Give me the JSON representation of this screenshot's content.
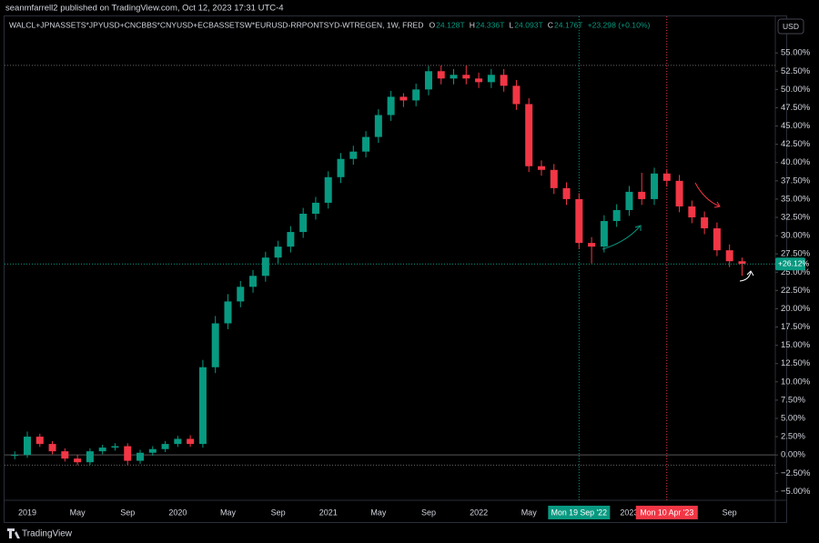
{
  "header": {
    "publisher": "seanmfarrell2 published on TradingView.com, Oct 12, 2023 17:31 UTC-4"
  },
  "currency_button": "USD",
  "footer": {
    "brand": "TradingView"
  },
  "chart_data": {
    "type": "candlestick",
    "title": "WALCL+JPNASSETS*JPYUSD+CNCBBS*CNYUSD+ECBASSETSW*EURUSD-RRPONTSYD-WTREGEN, 1W, FRED",
    "ohlc_legend": [
      {
        "letter": "O",
        "value": "24.128T"
      },
      {
        "letter": "H",
        "value": "24.336T"
      },
      {
        "letter": "L",
        "value": "24.093T"
      },
      {
        "letter": "C",
        "value": "24.176T"
      }
    ],
    "change": "+23.298 (+0.10%)",
    "categories": [
      null,
      "2019",
      null,
      null,
      null,
      "May",
      null,
      null,
      null,
      "Sep",
      null,
      null,
      null,
      "2020",
      null,
      null,
      null,
      "May",
      null,
      null,
      null,
      "Sep",
      null,
      null,
      null,
      "2021",
      null,
      null,
      null,
      "May",
      null,
      null,
      null,
      "Sep",
      null,
      null,
      null,
      "2022",
      null,
      null,
      null,
      "May",
      null,
      null,
      null,
      "Mon 19 Sep '22",
      null,
      null,
      null,
      "2023",
      null,
      null,
      "Mon 10 Apr '23",
      null,
      null,
      null,
      null,
      "Sep",
      null
    ],
    "open": [
      0,
      0,
      2.5,
      1.5,
      0.5,
      -0.5,
      -1,
      0.5,
      1,
      1.2,
      -0.8,
      0.3,
      0.8,
      1.5,
      2.2,
      1.5,
      12,
      18,
      21,
      23,
      24.5,
      27,
      28.5,
      30.5,
      33,
      34.5,
      38,
      40.5,
      41.5,
      43.5,
      46.5,
      49,
      48.5,
      50,
      52.5,
      51.5,
      52,
      51.5,
      51,
      52,
      50.5,
      48,
      39.5,
      39,
      36.5,
      35,
      29,
      28.5,
      32,
      33.5,
      36,
      35,
      38.5,
      37.5,
      34,
      32.5,
      31,
      28,
      26.5
    ],
    "high": [
      0.5,
      3.2,
      2.9,
      1.9,
      0.9,
      0,
      0.9,
      1.4,
      1.6,
      1.6,
      0.7,
      1.2,
      1.9,
      2.6,
      2.7,
      13,
      19,
      22,
      23.8,
      25.3,
      27.8,
      29.3,
      31.3,
      33.8,
      35.3,
      38.8,
      41.3,
      42.3,
      44.3,
      47.3,
      49.8,
      49.5,
      50.8,
      53.2,
      53.3,
      52.8,
      53.3,
      52.3,
      52.8,
      52.8,
      51.3,
      48.8,
      40.3,
      39.8,
      37.3,
      35.8,
      29.8,
      32.8,
      34.3,
      36.8,
      38.6,
      39.3,
      39,
      38.3,
      34.8,
      33.3,
      31.8,
      28.8,
      27
    ],
    "low": [
      -0.6,
      -0.4,
      1.1,
      0.1,
      -0.9,
      -1.4,
      -1.4,
      0.1,
      0.6,
      -1.4,
      -1.2,
      -0.1,
      0.4,
      1.1,
      1.1,
      1,
      11.2,
      17.2,
      20.2,
      22.2,
      23.7,
      26.2,
      27.7,
      29.7,
      32.2,
      33.7,
      37.2,
      39.7,
      40.7,
      42.7,
      45.7,
      47.6,
      47.7,
      49.2,
      50.7,
      50.7,
      50.7,
      50.2,
      50.2,
      49.7,
      47.2,
      38.7,
      38.2,
      35.7,
      34.2,
      28.2,
      26.2,
      27.7,
      31.2,
      32.7,
      34.2,
      34.2,
      36.7,
      33.2,
      31.7,
      30.2,
      27.2,
      25.7,
      24.5
    ],
    "close": [
      0,
      2.5,
      1.5,
      0.5,
      -0.5,
      -1,
      0.5,
      1,
      1.2,
      -0.8,
      0.3,
      0.8,
      1.5,
      2.2,
      1.5,
      12,
      18,
      21,
      23,
      24.5,
      27,
      28.5,
      30.5,
      33,
      34.5,
      38,
      40.5,
      41.5,
      43.5,
      46.5,
      49,
      48.5,
      50,
      52.5,
      51.5,
      52,
      51.5,
      51,
      52,
      50.5,
      48,
      39.5,
      39,
      36.5,
      35,
      29,
      28.5,
      32,
      33.5,
      36,
      35,
      38.5,
      37.5,
      34,
      32.5,
      31,
      28,
      26.5,
      26.12
    ],
    "up_color": "#089981",
    "down_color": "#f23645",
    "markers": [
      {
        "at": 45,
        "color": "#089981"
      },
      {
        "at": 52,
        "color": "#f23645"
      }
    ],
    "last_price": {
      "value": 26.12,
      "label": "+26.12%",
      "color": "#089981"
    },
    "dotted_levels": [
      53.3,
      -1.4
    ],
    "ylim": [
      -6.2,
      60
    ],
    "yticks": [
      {
        "value": -5,
        "label": "−5.00%"
      },
      {
        "value": -2.5,
        "label": "−2.50%"
      },
      {
        "value": 0,
        "label": "0.00%"
      },
      {
        "value": 2.5,
        "label": "2.50%"
      },
      {
        "value": 5,
        "label": "5.00%"
      },
      {
        "value": 7.5,
        "label": "7.50%"
      },
      {
        "value": 10,
        "label": "10.00%"
      },
      {
        "value": 12.5,
        "label": "12.50%"
      },
      {
        "value": 15,
        "label": "15.00%"
      },
      {
        "value": 17.5,
        "label": "17.50%"
      },
      {
        "value": 20,
        "label": "20.00%"
      },
      {
        "value": 22.5,
        "label": "22.50%"
      },
      {
        "value": 25,
        "label": "25.00%"
      },
      {
        "value": 27.5,
        "label": "27.50%"
      },
      {
        "value": 30,
        "label": "30.00%"
      },
      {
        "value": 32.5,
        "label": "32.50%"
      },
      {
        "value": 35,
        "label": "35.00%"
      },
      {
        "value": 37.5,
        "label": "37.50%"
      },
      {
        "value": 40,
        "label": "40.00%"
      },
      {
        "value": 42.5,
        "label": "42.50%"
      },
      {
        "value": 45,
        "label": "45.00%"
      },
      {
        "value": 47.5,
        "label": "47.50%"
      },
      {
        "value": 50,
        "label": "50.00%"
      },
      {
        "value": 52.5,
        "label": "52.50%"
      },
      {
        "value": 55,
        "label": "55.00%"
      }
    ],
    "zero_line": true
  }
}
